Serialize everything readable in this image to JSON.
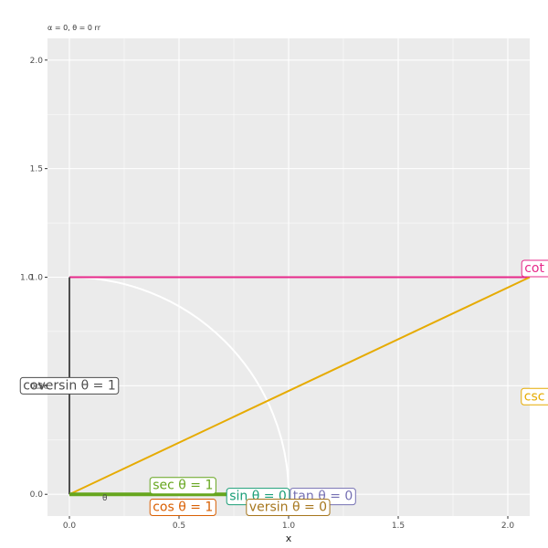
{
  "chart_data": {
    "type": "line",
    "title": "",
    "subtitle": "α = 0, θ = 0 rr",
    "xlabel": "x",
    "ylabel": "",
    "xlim": [
      -0.1,
      2.1
    ],
    "ylim": [
      -0.1,
      2.1
    ],
    "x_ticks": [
      0.0,
      0.5,
      1.0,
      1.5,
      2.0
    ],
    "x_tick_labels": [
      "0.0",
      "0.5",
      "1.0",
      "1.5",
      "2.0"
    ],
    "y_ticks": [
      0.0,
      0.5,
      1.0,
      1.5,
      2.0
    ],
    "y_tick_labels": [
      "0.0",
      "0.5",
      "1.0",
      "1.5",
      "2.0"
    ],
    "grid": true,
    "background": "#ebebeb",
    "theta_label": "θ",
    "axis_markers": {
      "at_y_1": "1.0",
      "at_y_05": "csc"
    },
    "unit_circle_arc": {
      "color": "#ffffff",
      "from_deg": 0,
      "to_deg": 90
    },
    "segments": [
      {
        "name": "cot",
        "x1": 0,
        "y1": 1,
        "x2": 2.1,
        "y2": 1,
        "color": "#e7298a"
      },
      {
        "name": "csc",
        "x1": 0,
        "y1": 0,
        "x2": 2.1,
        "y2": 1,
        "color": "#e6ab02"
      },
      {
        "name": "coversin",
        "x1": 0,
        "y1": 0,
        "x2": 0,
        "y2": 1,
        "color": "#4d4d4d"
      },
      {
        "name": "sec",
        "x1": 0,
        "y1": 0,
        "x2": 1,
        "y2": 0,
        "color": "#66a61e"
      }
    ],
    "labels": [
      {
        "text": "cot θ = I",
        "x": 2.2,
        "y": 1.04,
        "color": "#e7298a",
        "anchor": "middle"
      },
      {
        "text": "csc θ = I",
        "x": 2.2,
        "y": 0.45,
        "color": "#e6ab02",
        "anchor": "middle"
      },
      {
        "text": "coversin θ = 1",
        "x": 0,
        "y": 0.5,
        "color": "#4d4d4d",
        "anchor": "middle"
      },
      {
        "text": "sec θ = 1",
        "x": 0.38,
        "y": 0.04,
        "color": "#66a61e",
        "anchor": "start"
      },
      {
        "text": "cos θ = 1",
        "x": 0.38,
        "y": -0.06,
        "color": "#d95f02",
        "anchor": "start"
      },
      {
        "text": "sin θ = 0",
        "x": 0.73,
        "y": -0.01,
        "color": "#1b9e77",
        "anchor": "start"
      },
      {
        "text": "tan θ = 0",
        "x": 1.02,
        "y": -0.01,
        "color": "#7570b3",
        "anchor": "start"
      },
      {
        "text": "versin θ = 0",
        "x": 0.82,
        "y": -0.06,
        "color": "#a6761d",
        "anchor": "start"
      }
    ]
  }
}
